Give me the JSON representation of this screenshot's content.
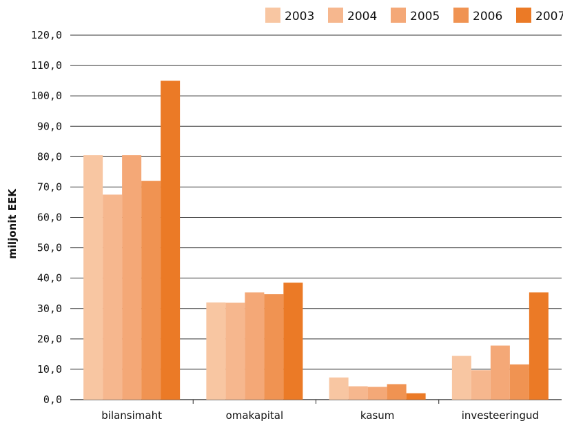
{
  "chart_data": {
    "type": "bar",
    "categories": [
      "bilansimaht",
      "omakapital",
      "kasum",
      "investeeringud"
    ],
    "series": [
      {
        "name": "2003",
        "color": "#F8C6A2",
        "values": [
          80.5,
          32.0,
          7.3,
          14.4
        ]
      },
      {
        "name": "2004",
        "color": "#F6B78E",
        "values": [
          67.5,
          31.9,
          4.4,
          9.7
        ]
      },
      {
        "name": "2005",
        "color": "#F4A877",
        "values": [
          80.5,
          35.3,
          4.2,
          17.8
        ]
      },
      {
        "name": "2006",
        "color": "#F09352",
        "values": [
          72.0,
          34.7,
          5.1,
          11.6
        ]
      },
      {
        "name": "2007",
        "color": "#EB7A26",
        "values": [
          105.0,
          38.5,
          2.1,
          35.3
        ]
      }
    ],
    "title": "",
    "xlabel": "",
    "ylabel": "miljonit EEK",
    "ylim": [
      0,
      120
    ],
    "yticks": [
      "0,0",
      "10,0",
      "20,0",
      "30,0",
      "40,0",
      "50,0",
      "60,0",
      "70,0",
      "80,0",
      "90,0",
      "100,0",
      "110,0",
      "120,0"
    ],
    "grid": true,
    "legend_position": "top-right"
  }
}
